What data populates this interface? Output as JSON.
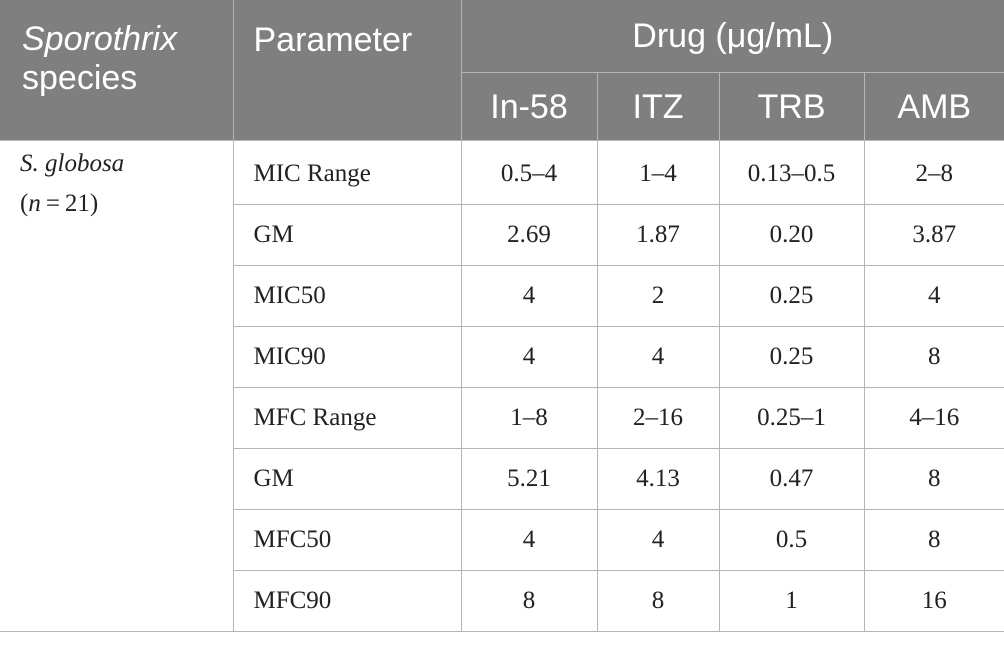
{
  "header": {
    "species_label_line1": "Sporothrix",
    "species_label_line2": "species",
    "parameter_label": "Parameter",
    "drug_group_label": "Drug (μg/mL)",
    "drugs": [
      "In-58",
      "ITZ",
      "TRB",
      "AMB"
    ]
  },
  "species": {
    "name": "S. globosa",
    "n_open": "(",
    "n_var": "n",
    "n_rest": " = 21)"
  },
  "rows": [
    {
      "parameter": "MIC Range",
      "values": [
        "0.5–4",
        "1–4",
        "0.13–0.5",
        "2–8"
      ]
    },
    {
      "parameter": "GM",
      "values": [
        "2.69",
        "1.87",
        "0.20",
        "3.87"
      ]
    },
    {
      "parameter": "MIC50",
      "values": [
        "4",
        "2",
        "0.25",
        "4"
      ]
    },
    {
      "parameter": "MIC90",
      "values": [
        "4",
        "4",
        "0.25",
        "8"
      ]
    },
    {
      "parameter": "MFC Range",
      "values": [
        "1–8",
        "2–16",
        "0.25–1",
        "4–16"
      ]
    },
    {
      "parameter": "GM",
      "values": [
        "5.21",
        "4.13",
        "0.47",
        "8"
      ]
    },
    {
      "parameter": "MFC50",
      "values": [
        "4",
        "4",
        "0.5",
        "8"
      ]
    },
    {
      "parameter": "MFC90",
      "values": [
        "8",
        "8",
        "1",
        "16"
      ]
    }
  ]
}
